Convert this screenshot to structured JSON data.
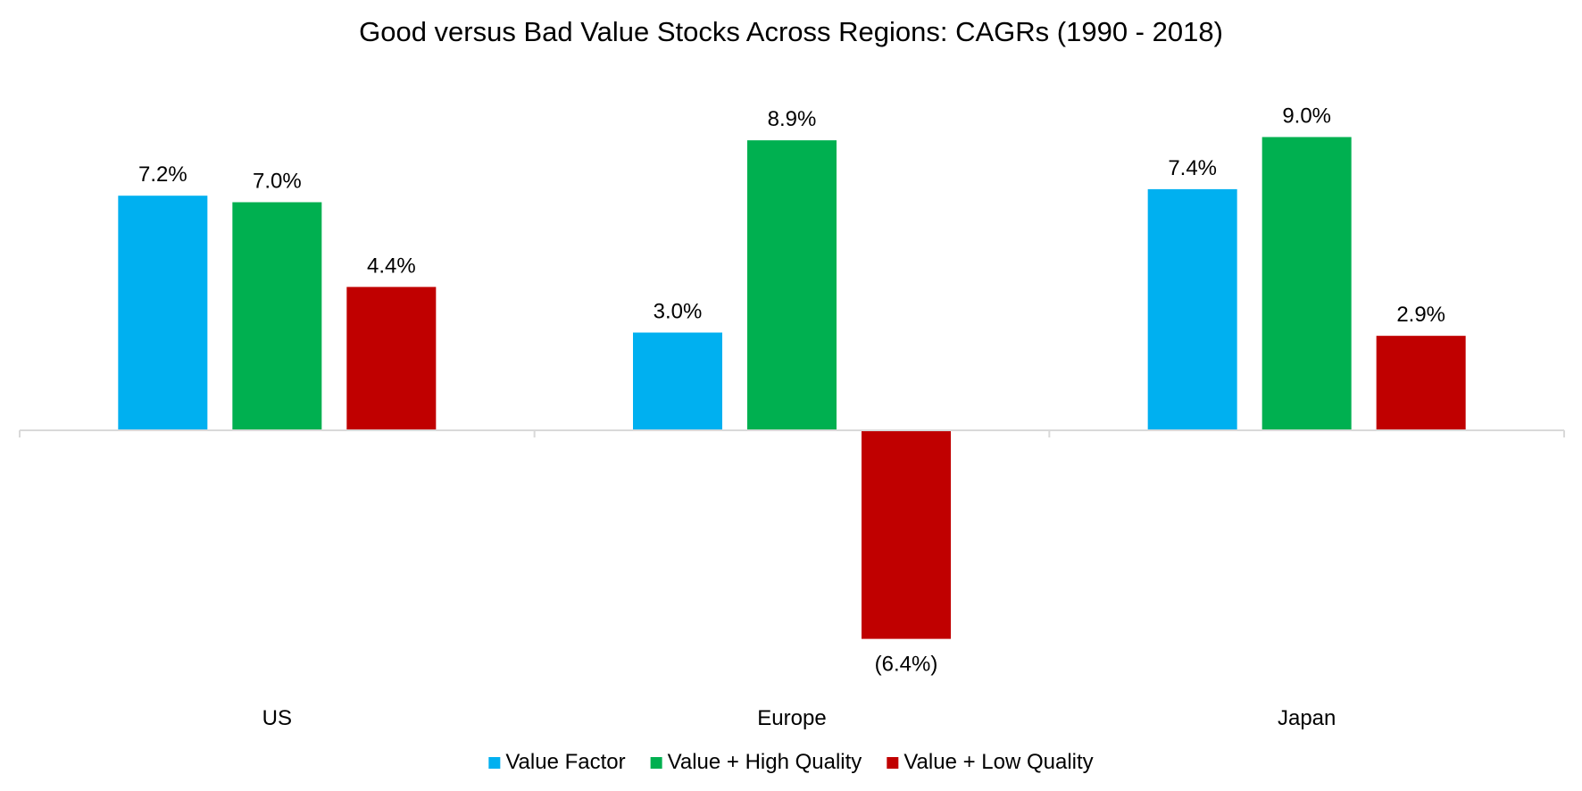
{
  "chart_data": {
    "type": "bar",
    "title": "Good versus Bad Value Stocks Across Regions: CAGRs (1990 - 2018)",
    "categories": [
      "US",
      "Europe",
      "Japan"
    ],
    "series": [
      {
        "name": "Value Factor",
        "color": "#00B0F0",
        "values": [
          7.2,
          3.0,
          7.4
        ],
        "labels": [
          "7.2%",
          "3.0%",
          "7.4%"
        ]
      },
      {
        "name": "Value + High Quality",
        "color": "#00B050",
        "values": [
          7.0,
          8.9,
          9.0
        ],
        "labels": [
          "7.0%",
          "8.9%",
          "9.0%"
        ]
      },
      {
        "name": "Value + Low Quality",
        "color": "#C00000",
        "values": [
          4.4,
          -6.4,
          2.9
        ],
        "labels": [
          "4.4%",
          "(6.4%)",
          "2.9%"
        ]
      }
    ],
    "xlabel": "",
    "ylabel": "",
    "ylim": [
      -6.4,
      9.0
    ],
    "grid": false,
    "legend_position": "bottom"
  }
}
